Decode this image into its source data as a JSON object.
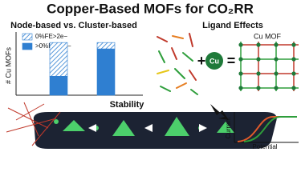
{
  "title": "Copper-Based MOFs for CO₂RR",
  "chart_data": {
    "type": "bar",
    "stacked": true,
    "title": "Node-based vs. Cluster-based",
    "y_label": "# Cu MOFs",
    "categories": [
      null,
      null
    ],
    "ylim": [
      0,
      60
    ],
    "series": [
      {
        "name": ">0%FE>2e−",
        "color": "#2f7fd1",
        "pattern": "solid",
        "values": [
          18,
          44
        ]
      },
      {
        "name": "0%FE>2e−",
        "color": "#2f7fd1",
        "pattern": "hatch",
        "values": [
          32,
          6
        ]
      }
    ]
  },
  "ligand": {
    "title": "Ligand Effects",
    "metal": "Cu",
    "product": "Cu MOF"
  },
  "stability": {
    "title": "Stability"
  },
  "curve_plot": {
    "y_label": "Current",
    "x_label": "Potential"
  }
}
